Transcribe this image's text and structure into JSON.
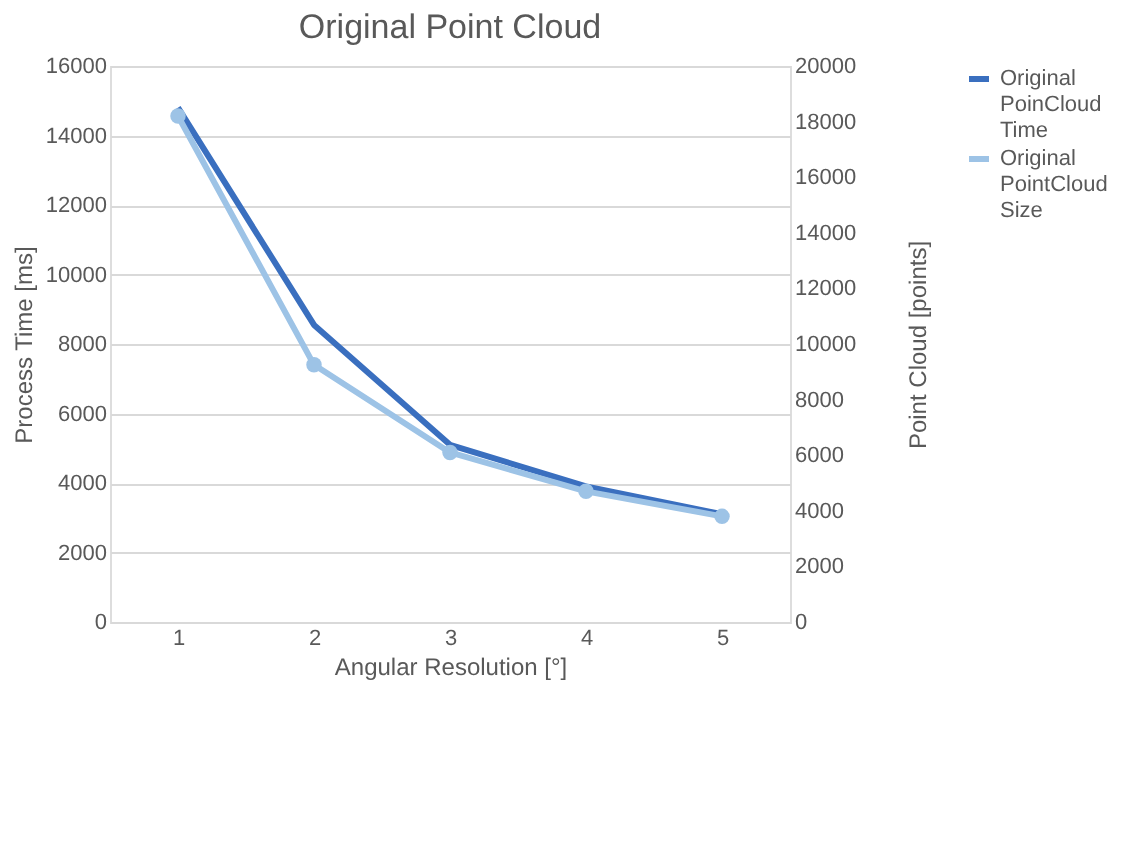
{
  "chart_data": {
    "type": "line",
    "title": "Original Point Cloud",
    "xlabel": "Angular Resolution [°]",
    "ylabel": "Process Time [ms]",
    "y2label": "Point Cloud [points]",
    "categories": [
      "1",
      "2",
      "3",
      "4",
      "5"
    ],
    "series": [
      {
        "name": "Original PoinCloud Time",
        "color": "#3a6fbf",
        "values": [
          14800,
          8550,
          5100,
          3900,
          3100
        ],
        "marker": "none"
      },
      {
        "name": "Original PointCloud Size",
        "color": "#9dc3e6",
        "values": [
          18200,
          9250,
          6100,
          4700,
          3800
        ],
        "axis": "y2",
        "marker": "circle"
      }
    ],
    "ylim": [
      0,
      16000
    ],
    "yticks": [
      0,
      2000,
      4000,
      6000,
      8000,
      10000,
      12000,
      14000,
      16000
    ],
    "y2lim": [
      0,
      20000
    ],
    "y2ticks": [
      0,
      2000,
      4000,
      6000,
      8000,
      10000,
      12000,
      14000,
      16000,
      18000,
      20000
    ],
    "grid": "y",
    "legend": "right"
  }
}
